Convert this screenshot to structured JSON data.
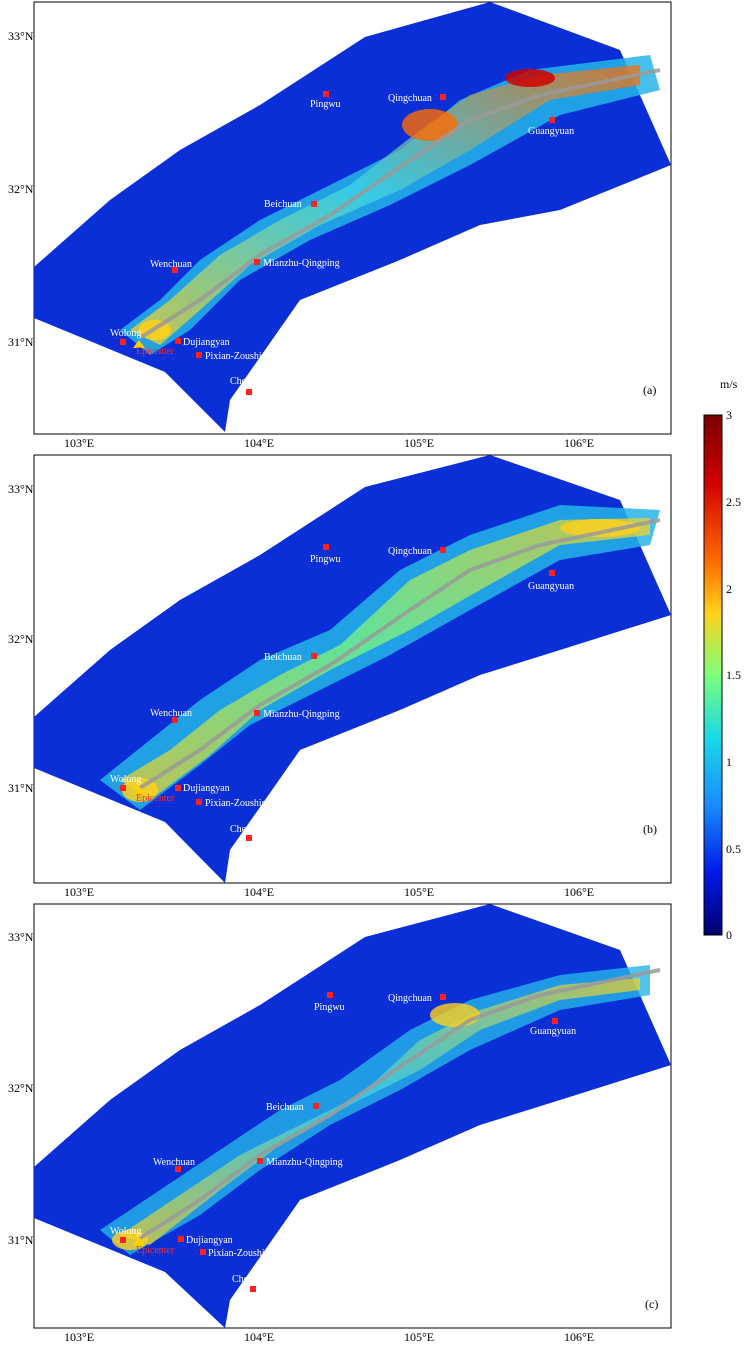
{
  "colorbar": {
    "unit": "m/s",
    "ticks": [
      "3",
      "2.5",
      "2",
      "1.5",
      "1",
      "0.5",
      "0"
    ],
    "colors": [
      "#7a0000",
      "#d00000",
      "#ff6a00",
      "#ffd11a",
      "#7dff7a",
      "#18d9e6",
      "#1a8cff",
      "#0019e6",
      "#00006b"
    ]
  },
  "axes": {
    "x_ticks": [
      "103°E",
      "104°E",
      "105°E",
      "106°E"
    ],
    "y_ticks": [
      "33°N",
      "32°N",
      "31°N"
    ]
  },
  "panels": [
    {
      "label": "(a)"
    },
    {
      "label": "(b)"
    },
    {
      "label": "(c)"
    }
  ],
  "cities": {
    "pingwu": "Pingwu",
    "qingchuan": "Qingchuan",
    "guangyuan": "Guangyuan",
    "beichuan": "Beichuan",
    "wenchuan": "Wenchuan",
    "mianzhu": "Mianzhu-Qingping",
    "wolong": "Wolong",
    "dujiangyan": "Dujiangyan",
    "pixian": "Pixian-Zoushishan",
    "chengdu": "Chengdu",
    "epicenter": "Epicenter"
  },
  "colors": {
    "marker": "#ff2020",
    "background": "#0a2fd6",
    "fault": "#9a9a9a",
    "epicenter_triangle": "#ffd000"
  }
}
